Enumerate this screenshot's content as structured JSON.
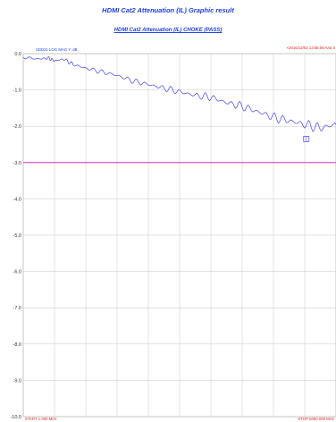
{
  "page": {
    "title": "HDMI Cat2 Attenuation (IL) Graphic result"
  },
  "chart_data": {
    "type": "line",
    "subtitle": "HDMI Cat2 Attenuation (IL) CHOKE  (PASS)",
    "trace_label": "SDD21  LOG MAG   Y: dB",
    "timestamp": "<2016/12/02 13:58:06>Var:3",
    "start_label": "START 1.000 MHz",
    "stop_label": "STOP 6000.000 MHz",
    "ylim": [
      -10.0,
      0.0
    ],
    "y_tick_labels": [
      "0.0",
      "-1.0",
      "-2.0",
      "-3.0",
      "-4.0",
      "-5.0",
      "-6.0",
      "-7.0",
      "-8.0",
      "-9.0",
      "-10.0"
    ],
    "x_divisions": 10,
    "limit_line": -3.0,
    "marker": -2.35,
    "series": [
      {
        "color": "#5a5af0",
        "x": [
          0.0,
          0.05,
          0.08,
          0.1,
          0.13,
          0.16,
          0.2,
          0.25,
          0.3,
          0.35,
          0.4,
          0.45,
          0.5,
          0.55,
          0.6,
          0.65,
          0.7,
          0.75,
          0.8,
          0.85,
          0.9,
          0.95,
          1.0
        ],
        "y": [
          -0.1,
          -0.15,
          -0.12,
          -0.2,
          -0.15,
          -0.3,
          -0.4,
          -0.5,
          -0.6,
          -0.75,
          -0.85,
          -0.95,
          -1.05,
          -1.15,
          -1.2,
          -1.35,
          -1.45,
          -1.6,
          -1.75,
          -1.85,
          -1.95,
          -2.05,
          -1.95
        ]
      }
    ],
    "legend": "none",
    "grid": true,
    "colors": {
      "trace": "#5a5af0",
      "limit_line": "#cc44cc",
      "title": "#1f3fe0",
      "timestamp": "#e02020",
      "grid": "#c8c8c8"
    }
  }
}
